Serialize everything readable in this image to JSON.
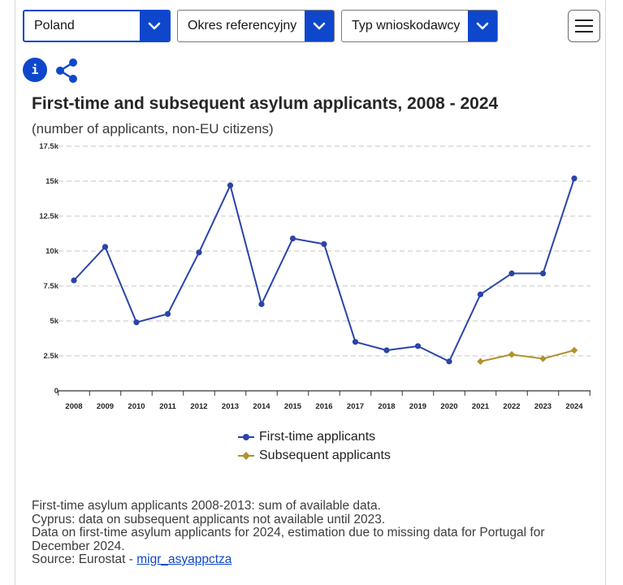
{
  "filters": {
    "country": "Poland",
    "period": "Okres referencyjny",
    "applicant_type": "Typ wnioskodawcy"
  },
  "toolbar": {
    "info_icon": "i"
  },
  "colors": {
    "accent": "#0e47cb",
    "first_time": "#2a44a8",
    "subsequent": "#b0912d",
    "grid": "#bfbfbf"
  },
  "chart_data": {
    "type": "line",
    "title": "First-time and subsequent asylum applicants, 2008 - 2024",
    "subtitle": "(number of applicants, non-EU citizens)",
    "x": [
      "2008",
      "2009",
      "2010",
      "2011",
      "2012",
      "2013",
      "2014",
      "2015",
      "2016",
      "2017",
      "2018",
      "2019",
      "2020",
      "2021",
      "2022",
      "2023",
      "2024"
    ],
    "y_ticks": [
      "0",
      "2.5k",
      "5k",
      "7.5k",
      "10k",
      "12.5k",
      "15k",
      "17.5k"
    ],
    "ylim": [
      0,
      17500
    ],
    "grid": true,
    "legend_position": "bottom",
    "series": [
      {
        "name": "First-time applicants",
        "color": "#2a44a8",
        "values": [
          7900,
          10300,
          4900,
          5500,
          9900,
          14700,
          6200,
          10900,
          10500,
          3500,
          2900,
          3200,
          2100,
          6900,
          8400,
          8400,
          15200
        ]
      },
      {
        "name": "Subsequent applicants",
        "color": "#b0912d",
        "values": [
          null,
          null,
          null,
          null,
          null,
          null,
          null,
          null,
          null,
          null,
          null,
          null,
          null,
          2100,
          2600,
          2300,
          2900
        ]
      }
    ]
  },
  "notes": {
    "line1": "First-time asylum applicants 2008-2013: sum of available data.",
    "line2": "Cyprus: data on subsequent applicants not available until 2023.",
    "line3": "Data on first-time asylum applicants for 2024, estimation due to missing data for Portugal for December 2024.",
    "source_prefix": "Source: Eurostat - ",
    "source_link": "migr_asyappctza"
  }
}
